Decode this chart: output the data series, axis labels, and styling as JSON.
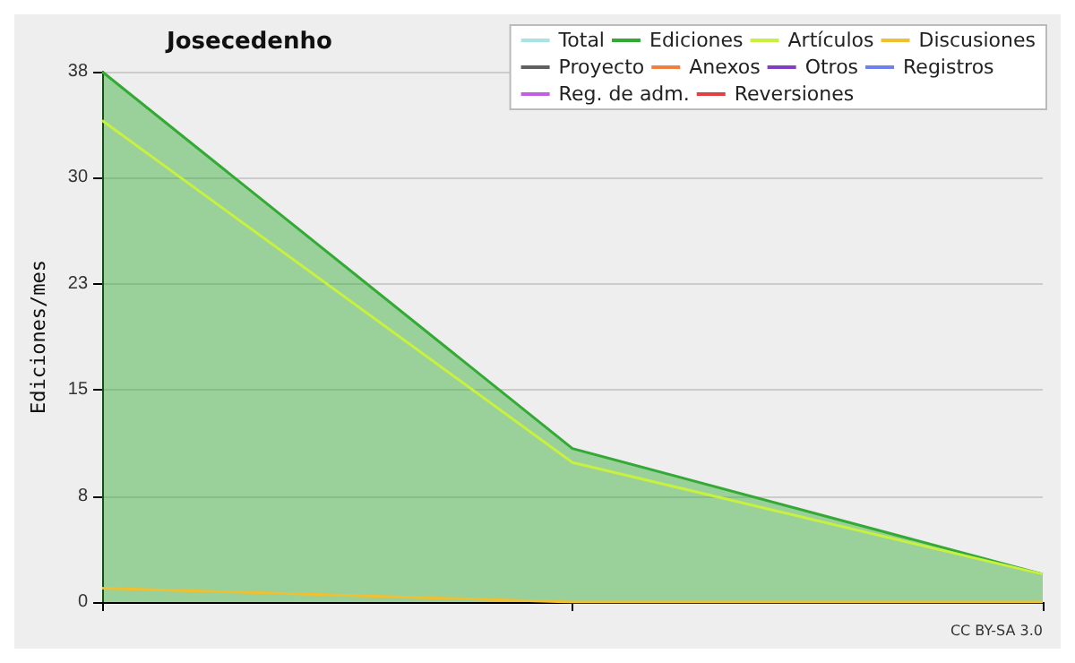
{
  "chart_data": {
    "type": "line",
    "title": "Josecedenho",
    "ylabel": "Ediciones/mes",
    "categories": [
      null,
      null,
      null
    ],
    "ylim": [
      0,
      38
    ],
    "yticks": [
      0,
      {
        "value": 7.6,
        "label": "8"
      },
      {
        "value": 15.2,
        "label": "15"
      },
      {
        "value": 22.8,
        "label": "23"
      },
      {
        "value": 30.4,
        "label": "30"
      },
      38
    ],
    "grid": "y",
    "legend": "top right",
    "marker": "none",
    "line_style": "solid",
    "annotations": [
      "CC BY-SA 3.0"
    ],
    "series": [
      {
        "name": "Total",
        "color": "#a8e4e4",
        "values": [
          null,
          null,
          null
        ]
      },
      {
        "name": "Ediciones",
        "type": "area",
        "color": "#33aa33",
        "values": [
          38,
          11,
          2
        ]
      },
      {
        "name": "Artículos",
        "color": "#c8f040",
        "values": [
          34.5,
          10,
          2
        ]
      },
      {
        "name": "Discusiones",
        "color": "#f0c030",
        "values": [
          1,
          0,
          0
        ]
      },
      {
        "name": "Proyecto",
        "color": "#606060",
        "values": [
          null,
          null,
          null
        ]
      },
      {
        "name": "Anexos",
        "color": "#f08040",
        "values": [
          null,
          null,
          null
        ]
      },
      {
        "name": "Otros",
        "color": "#8040c0",
        "values": [
          null,
          null,
          null
        ]
      },
      {
        "name": "Registros",
        "color": "#7080f0",
        "values": [
          null,
          null,
          null
        ]
      },
      {
        "name": "Reg. de adm.",
        "color": "#c060e0",
        "values": [
          null,
          null,
          null
        ]
      },
      {
        "name": "Reversiones",
        "color": "#e04040",
        "values": [
          null,
          null,
          null
        ]
      }
    ]
  }
}
